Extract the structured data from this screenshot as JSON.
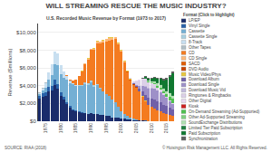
{
  "chart_data": {
    "type": "bar",
    "stacked": true,
    "title": "WILL STREAMING RESCUE THE MUSIC INDUSTRY?",
    "subtitle": "U.S. Recorded Music Revenue by Format (1973 to 2017)",
    "ylabel": "Revenue ($millions)",
    "categories": [
      null,
      null,
      "1975",
      null,
      null,
      null,
      null,
      "1980",
      null,
      null,
      null,
      null,
      "1985",
      null,
      null,
      null,
      null,
      "1990",
      null,
      null,
      null,
      null,
      "1995",
      null,
      null,
      null,
      null,
      "2000",
      null,
      null,
      null,
      null,
      "2005",
      null,
      null,
      null,
      null,
      "2010",
      null,
      null,
      null,
      null,
      "2015",
      null,
      null
    ],
    "series": [
      {
        "name": "LP/EP",
        "color": "#1a2c6b",
        "values": [
          2500,
          2800,
          2900,
          3400,
          3500,
          4100,
          3700,
          2900,
          2400,
          1900,
          1500,
          1200,
          1100,
          1000,
          900,
          900,
          800,
          900,
          800,
          800,
          700,
          700,
          600,
          600,
          400,
          400,
          400,
          350,
          300,
          250,
          200,
          150,
          100,
          80,
          60,
          50,
          40,
          30,
          20,
          15,
          10,
          8,
          5,
          4,
          3
        ]
      },
      {
        "name": "Vinyl Single",
        "color": "#2961a8",
        "values": [
          400,
          400,
          400,
          500,
          500,
          600,
          500,
          400,
          300,
          250,
          200,
          150,
          100,
          80,
          70,
          60,
          50,
          40,
          30,
          25,
          20,
          18,
          15,
          12,
          10,
          8,
          7,
          6,
          5,
          4,
          4,
          3,
          3,
          3,
          3,
          3,
          3,
          3,
          3,
          3,
          3,
          3,
          3,
          3,
          3
        ]
      },
      {
        "name": "Cassette",
        "color": "#74afd4",
        "values": [
          200,
          300,
          500,
          800,
          1200,
          1700,
          2100,
          2000,
          2200,
          2500,
          2600,
          2800,
          2800,
          2900,
          3000,
          3200,
          3200,
          3400,
          3000,
          3200,
          2900,
          2600,
          2400,
          2200,
          2000,
          1700,
          1200,
          800,
          500,
          350,
          200,
          120,
          70,
          40,
          20,
          10,
          5,
          3,
          2,
          1,
          1,
          0,
          0,
          0,
          0
        ]
      },
      {
        "name": "Cassette Single",
        "color": "#a8cfe0",
        "values": [
          0,
          0,
          0,
          0,
          0,
          0,
          0,
          0,
          0,
          0,
          0,
          0,
          0,
          50,
          100,
          150,
          200,
          250,
          200,
          150,
          100,
          70,
          50,
          30,
          20,
          10,
          5,
          3,
          2,
          1,
          0,
          0,
          0,
          0,
          0,
          0,
          0,
          0,
          0,
          0,
          0,
          0,
          0,
          0,
          0
        ]
      },
      {
        "name": "8-Track",
        "color": "#c8dff0",
        "values": [
          100,
          200,
          500,
          800,
          1200,
          1400,
          1300,
          1000,
          700,
          400,
          200,
          100,
          50,
          20,
          10,
          5,
          2,
          1,
          0,
          0,
          0,
          0,
          0,
          0,
          0,
          0,
          0,
          0,
          0,
          0,
          0,
          0,
          0,
          0,
          0,
          0,
          0,
          0,
          0,
          0,
          0,
          0,
          0,
          0,
          0
        ]
      },
      {
        "name": "Other Tapes",
        "color": "#b0bec5",
        "values": [
          50,
          50,
          50,
          50,
          50,
          60,
          60,
          50,
          50,
          50,
          40,
          40,
          30,
          30,
          30,
          20,
          20,
          20,
          20,
          20,
          20,
          20,
          15,
          15,
          10,
          10,
          8,
          6,
          5,
          4,
          3,
          2,
          2,
          1,
          1,
          1,
          0,
          0,
          0,
          0,
          0,
          0,
          0,
          0,
          0
        ]
      },
      {
        "name": "CD",
        "color": "#f47b20",
        "values": [
          0,
          0,
          0,
          0,
          0,
          0,
          0,
          0,
          0,
          50,
          100,
          300,
          600,
          1000,
          1500,
          2100,
          2700,
          3400,
          4000,
          4600,
          5000,
          5500,
          5900,
          6200,
          6700,
          7100,
          7000,
          6700,
          5800,
          4900,
          4200,
          3800,
          3600,
          3200,
          2700,
          2200,
          1800,
          1600,
          1400,
          1200,
          1100,
          900,
          800,
          700,
          600
        ]
      },
      {
        "name": "CD Single",
        "color": "#fdb97a",
        "values": [
          0,
          0,
          0,
          0,
          0,
          0,
          0,
          0,
          0,
          0,
          0,
          0,
          0,
          0,
          20,
          40,
          70,
          100,
          120,
          150,
          180,
          200,
          250,
          300,
          250,
          200,
          150,
          100,
          70,
          40,
          20,
          10,
          5,
          3,
          2,
          1,
          0,
          0,
          0,
          0,
          0,
          0,
          0,
          0,
          0
        ]
      },
      {
        "name": "SACD",
        "color": "#e05c00",
        "values": [
          0,
          0,
          0,
          0,
          0,
          0,
          0,
          0,
          0,
          0,
          0,
          0,
          0,
          0,
          0,
          0,
          0,
          0,
          0,
          0,
          0,
          0,
          0,
          0,
          0,
          5,
          10,
          15,
          20,
          30,
          35,
          40,
          30,
          20,
          10,
          5,
          2,
          1,
          0,
          0,
          0,
          0,
          0,
          0,
          0
        ]
      },
      {
        "name": "DVD Audio",
        "color": "#c84400",
        "values": [
          0,
          0,
          0,
          0,
          0,
          0,
          0,
          0,
          0,
          0,
          0,
          0,
          0,
          0,
          0,
          0,
          0,
          0,
          0,
          0,
          0,
          0,
          0,
          0,
          0,
          0,
          0,
          10,
          20,
          30,
          30,
          25,
          15,
          8,
          4,
          2,
          1,
          0,
          0,
          0,
          0,
          0,
          0,
          0,
          0
        ]
      },
      {
        "name": "Music Video/Phys",
        "color": "#e8c840",
        "values": [
          0,
          0,
          0,
          0,
          0,
          0,
          0,
          0,
          0,
          0,
          0,
          10,
          20,
          30,
          40,
          50,
          60,
          70,
          70,
          70,
          70,
          70,
          70,
          80,
          80,
          80,
          80,
          80,
          70,
          60,
          50,
          40,
          30,
          30,
          30,
          25,
          20,
          15,
          10,
          8,
          5,
          3,
          2,
          2,
          2
        ]
      },
      {
        "name": "Download Album",
        "color": "#7060a8",
        "values": [
          0,
          0,
          0,
          0,
          0,
          0,
          0,
          0,
          0,
          0,
          0,
          0,
          0,
          0,
          0,
          0,
          0,
          0,
          0,
          0,
          0,
          0,
          0,
          0,
          0,
          0,
          0,
          0,
          0,
          0,
          20,
          70,
          150,
          300,
          500,
          700,
          800,
          900,
          1000,
          1000,
          1000,
          950,
          900,
          800,
          700
        ]
      },
      {
        "name": "Download Single",
        "color": "#9e90c8",
        "values": [
          0,
          0,
          0,
          0,
          0,
          0,
          0,
          0,
          0,
          0,
          0,
          0,
          0,
          0,
          0,
          0,
          0,
          0,
          0,
          0,
          0,
          0,
          0,
          0,
          0,
          0,
          0,
          0,
          0,
          0,
          10,
          30,
          100,
          300,
          600,
          900,
          1000,
          1100,
          1200,
          1200,
          1150,
          1050,
          900,
          750,
          600
        ]
      },
      {
        "name": "Download Music Vid",
        "color": "#c0b8dc",
        "values": [
          0,
          0,
          0,
          0,
          0,
          0,
          0,
          0,
          0,
          0,
          0,
          0,
          0,
          0,
          0,
          0,
          0,
          0,
          0,
          0,
          0,
          0,
          0,
          0,
          0,
          0,
          0,
          0,
          0,
          0,
          0,
          0,
          5,
          20,
          50,
          80,
          80,
          70,
          60,
          50,
          40,
          30,
          25,
          20,
          15
        ]
      },
      {
        "name": "Ringtones & Ringbacks",
        "color": "#dcd0e8",
        "values": [
          0,
          0,
          0,
          0,
          0,
          0,
          0,
          0,
          0,
          0,
          0,
          0,
          0,
          0,
          0,
          0,
          0,
          0,
          0,
          0,
          0,
          0,
          0,
          0,
          0,
          0,
          0,
          0,
          0,
          50,
          100,
          200,
          400,
          600,
          700,
          700,
          600,
          500,
          400,
          300,
          200,
          150,
          100,
          80,
          60
        ]
      },
      {
        "name": "Other Digital",
        "color": "#e8d8f0",
        "values": [
          0,
          0,
          0,
          0,
          0,
          0,
          0,
          0,
          0,
          0,
          0,
          0,
          0,
          0,
          0,
          0,
          0,
          0,
          0,
          0,
          0,
          0,
          0,
          0,
          0,
          0,
          0,
          0,
          0,
          10,
          20,
          30,
          40,
          50,
          60,
          60,
          50,
          50,
          50,
          40,
          30,
          30,
          25,
          20,
          15
        ]
      },
      {
        "name": "Kiosk",
        "color": "#cc2020",
        "values": [
          0,
          0,
          0,
          0,
          0,
          0,
          0,
          0,
          0,
          0,
          0,
          0,
          0,
          0,
          0,
          0,
          0,
          0,
          0,
          0,
          0,
          0,
          0,
          0,
          0,
          0,
          0,
          0,
          0,
          0,
          0,
          0,
          5,
          10,
          15,
          15,
          10,
          5,
          3,
          1,
          0,
          0,
          0,
          0,
          0
        ]
      },
      {
        "name": "On-Demand Streaming (Ad-Supported)",
        "color": "#50c050",
        "values": [
          0,
          0,
          0,
          0,
          0,
          0,
          0,
          0,
          0,
          0,
          0,
          0,
          0,
          0,
          0,
          0,
          0,
          0,
          0,
          0,
          0,
          0,
          0,
          0,
          0,
          0,
          0,
          0,
          0,
          0,
          0,
          0,
          0,
          0,
          0,
          10,
          30,
          50,
          100,
          150,
          200,
          250,
          300,
          400,
          500
        ]
      },
      {
        "name": "Other Ad-Supported Streaming",
        "color": "#80d080",
        "values": [
          0,
          0,
          0,
          0,
          0,
          0,
          0,
          0,
          0,
          0,
          0,
          0,
          0,
          0,
          0,
          0,
          0,
          0,
          0,
          0,
          0,
          0,
          0,
          0,
          0,
          0,
          0,
          0,
          0,
          0,
          0,
          0,
          0,
          0,
          0,
          5,
          10,
          20,
          30,
          30,
          30,
          25,
          20,
          15,
          10
        ]
      },
      {
        "name": "SoundExchange Distributions",
        "color": "#b0e0b0",
        "values": [
          0,
          0,
          0,
          0,
          0,
          0,
          0,
          0,
          0,
          0,
          0,
          0,
          0,
          0,
          0,
          0,
          0,
          0,
          0,
          0,
          0,
          0,
          0,
          0,
          0,
          0,
          0,
          0,
          0,
          0,
          0,
          0,
          0,
          10,
          30,
          60,
          100,
          150,
          200,
          250,
          280,
          300,
          320,
          340,
          360
        ]
      },
      {
        "name": "Limited Tier Paid Subscription",
        "color": "#208040",
        "values": [
          0,
          0,
          0,
          0,
          0,
          0,
          0,
          0,
          0,
          0,
          0,
          0,
          0,
          0,
          0,
          0,
          0,
          0,
          0,
          0,
          0,
          0,
          0,
          0,
          0,
          0,
          0,
          0,
          0,
          0,
          0,
          0,
          0,
          0,
          0,
          20,
          40,
          60,
          80,
          100,
          100,
          100,
          90,
          80,
          70
        ]
      },
      {
        "name": "Paid Subscription",
        "color": "#107830",
        "values": [
          0,
          0,
          0,
          0,
          0,
          0,
          0,
          0,
          0,
          0,
          0,
          0,
          0,
          0,
          0,
          0,
          0,
          0,
          0,
          0,
          0,
          0,
          0,
          0,
          0,
          0,
          0,
          0,
          0,
          0,
          0,
          0,
          0,
          0,
          50,
          100,
          150,
          200,
          300,
          400,
          600,
          800,
          1200,
          1800,
          2500
        ]
      },
      {
        "name": "Synchronization",
        "color": "#606060",
        "values": [
          0,
          0,
          0,
          0,
          0,
          0,
          0,
          0,
          0,
          0,
          0,
          0,
          0,
          0,
          0,
          0,
          0,
          0,
          0,
          0,
          0,
          0,
          0,
          0,
          0,
          0,
          0,
          0,
          0,
          0,
          0,
          0,
          0,
          0,
          100,
          150,
          160,
          170,
          180,
          170,
          160,
          150,
          160,
          170,
          180
        ]
      }
    ],
    "ylim": [
      0,
      11000
    ],
    "yticks": [
      {
        "value": 0,
        "label": "$0"
      },
      {
        "value": 2000,
        "label": "$2,000"
      },
      {
        "value": 4000,
        "label": "$4,000"
      },
      {
        "value": 6000,
        "label": "$6,000"
      },
      {
        "value": 8000,
        "label": "$8,000"
      },
      {
        "value": 10000,
        "label": "$10,000"
      }
    ],
    "grid": true,
    "legend": "right",
    "legend_title": "Format (Click to Highlight)",
    "annotations": [
      "SOURCE: RIAA (2018)",
      "© Hoisington Risk Management LLC. All Rights Reserved."
    ]
  }
}
